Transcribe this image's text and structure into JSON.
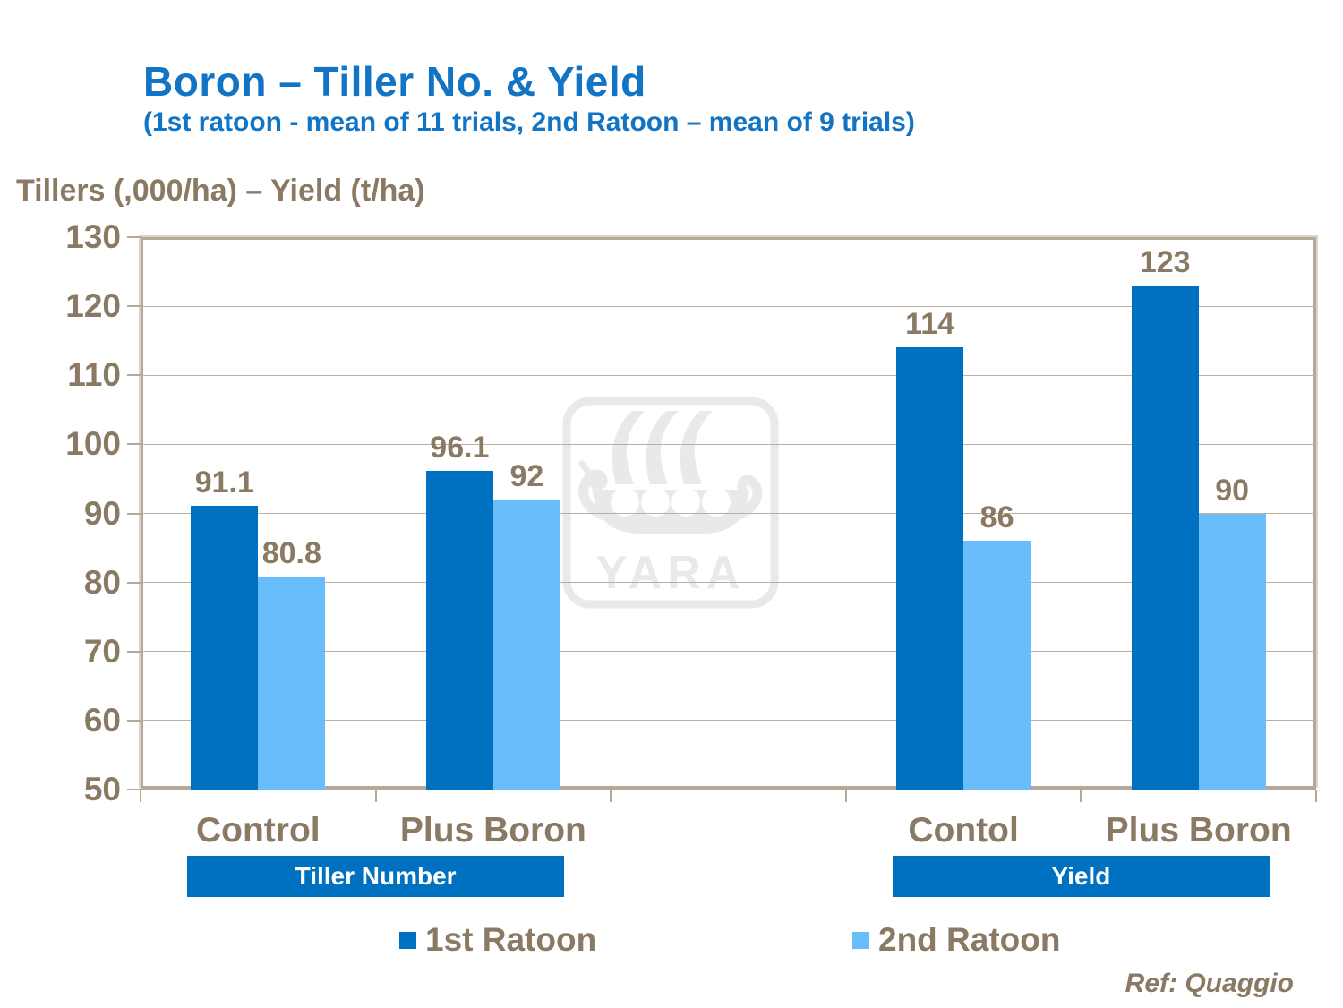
{
  "slide": {
    "title": "Boron – Tiller No. & Yield",
    "subtitle": "(1st ratoon - mean of 11 trials, 2nd Ratoon – mean of 9 trials)",
    "axis_title": "Tillers (,000/ha) – Yield (t/ha)",
    "watermark": "YARA",
    "ref": "Ref: Quaggio"
  },
  "colors": {
    "title_blue": "#1274C4",
    "series1_blue": "#0071C1",
    "series2_blue": "#6ABDFB",
    "text_brown": "#8A7A64",
    "axis_taupe": "#B5A897",
    "gridline_taupe": "#BCAFA0",
    "section_box_blue": "#0071C1",
    "watermark_gray": "#E9E9E9"
  },
  "chart_data": {
    "type": "bar",
    "title": "Boron – Tiller No. & Yield",
    "subtitle": "(1st ratoon - mean of 11 trials, 2nd Ratoon – mean of 9 trials)",
    "ylabel": "Tillers (,000/ha) – Yield (t/ha)",
    "xlabel": "",
    "ylim": [
      50,
      130
    ],
    "ytick_step": 10,
    "grid": "horizontal",
    "legend_position": "bottom",
    "num_slots": 5,
    "series": [
      {
        "name": "1st Ratoon",
        "color": "#0071C1"
      },
      {
        "name": "2nd Ratoon",
        "color": "#6ABDFB"
      }
    ],
    "groups": [
      {
        "slot": 0,
        "category": "Control",
        "values": [
          91.1,
          80.8
        ],
        "labels": [
          "91.1",
          "80.8"
        ]
      },
      {
        "slot": 1,
        "category": "Plus Boron",
        "values": [
          96.1,
          92
        ],
        "labels": [
          "96.1",
          "92"
        ]
      },
      {
        "slot": 3,
        "category": "Contol",
        "values": [
          114,
          86
        ],
        "labels": [
          "114",
          "86"
        ]
      },
      {
        "slot": 4,
        "category": "Plus Boron",
        "values": [
          123,
          90
        ],
        "labels": [
          "123",
          "90"
        ]
      }
    ],
    "sections": [
      {
        "label": "Tiller Number",
        "slots": [
          0,
          1
        ]
      },
      {
        "label": "Yield",
        "slots": [
          3,
          4
        ]
      }
    ]
  }
}
